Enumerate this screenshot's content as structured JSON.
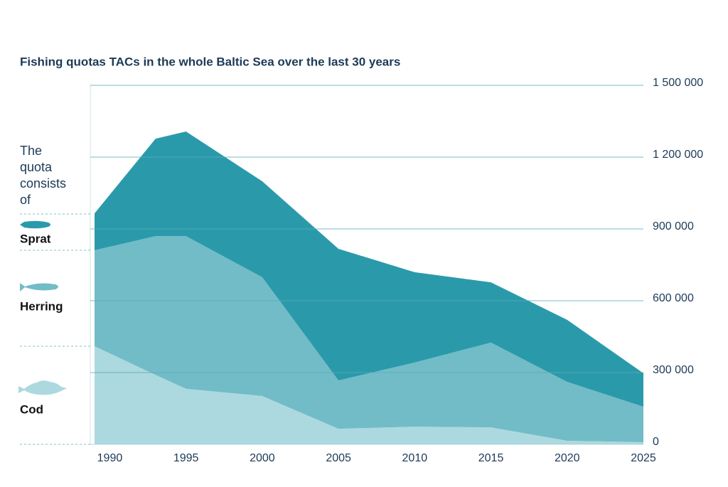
{
  "chart_data": {
    "type": "stacked_area",
    "title": "Fishing quotas TACs in the whole Baltic Sea over the last 30 years",
    "legend_title": "The quota consists of",
    "x": [
      1989,
      1993,
      1995,
      2000,
      2005,
      2010,
      2015,
      2020,
      2025
    ],
    "series": [
      {
        "name": "Cod",
        "color": "#acd9df",
        "values": [
          410000,
          290000,
          232000,
          202000,
          65000,
          74000,
          71000,
          15000,
          9000
        ]
      },
      {
        "name": "Herring",
        "color": "#72bcc7",
        "values": [
          401000,
          580000,
          638000,
          496000,
          202000,
          268000,
          354000,
          246000,
          148000
        ]
      },
      {
        "name": "Sprat",
        "color": "#2a9aab",
        "values": [
          154000,
          407000,
          437000,
          401000,
          550000,
          377000,
          252000,
          259000,
          140000
        ]
      }
    ],
    "xlim": [
      1989,
      2025
    ],
    "xticks": [
      1990,
      1995,
      2000,
      2005,
      2010,
      2015,
      2020,
      2025
    ],
    "ylim": [
      0,
      1500000
    ],
    "yticks": [
      0,
      {
        "value": 300000,
        "label": "300 000"
      },
      {
        "value": 600000,
        "label": "600 000"
      },
      {
        "value": 900000,
        "label": "900 000"
      },
      {
        "value": 1200000,
        "label": "1 200 000"
      },
      {
        "value": 1500000,
        "label": "1 500 000"
      }
    ],
    "grid": true
  }
}
